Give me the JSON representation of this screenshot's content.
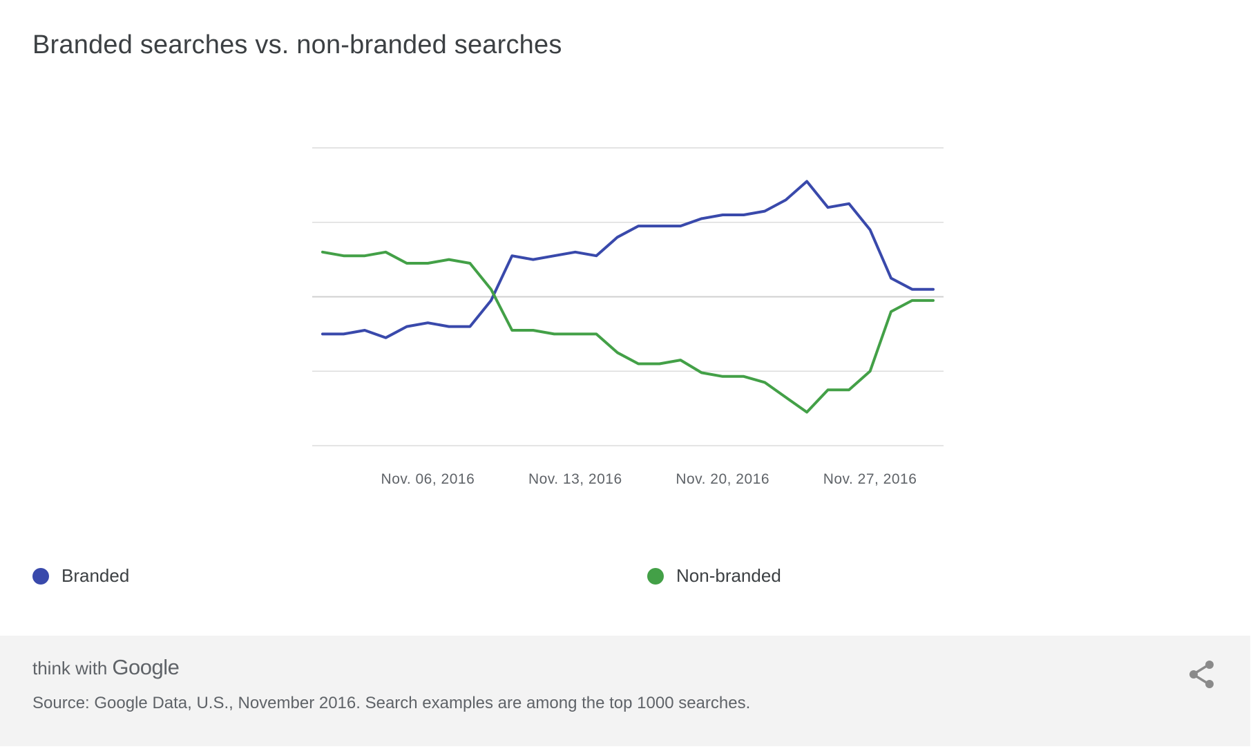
{
  "title": "Branded searches vs. non-branded searches",
  "chart_data": {
    "type": "line",
    "title": "Branded searches vs. non-branded searches",
    "x": [
      "2016-11-01",
      "2016-11-02",
      "2016-11-03",
      "2016-11-04",
      "2016-11-05",
      "2016-11-06",
      "2016-11-07",
      "2016-11-08",
      "2016-11-09",
      "2016-11-10",
      "2016-11-11",
      "2016-11-12",
      "2016-11-13",
      "2016-11-14",
      "2016-11-15",
      "2016-11-16",
      "2016-11-17",
      "2016-11-18",
      "2016-11-19",
      "2016-11-20",
      "2016-11-21",
      "2016-11-22",
      "2016-11-23",
      "2016-11-24",
      "2016-11-25",
      "2016-11-26",
      "2016-11-27",
      "2016-11-28",
      "2016-11-29",
      "2016-11-30"
    ],
    "x_tick_labels": [
      {
        "date": "2016-11-06",
        "label": "Nov. 06, 2016"
      },
      {
        "date": "2016-11-13",
        "label": "Nov. 13, 2016"
      },
      {
        "date": "2016-11-20",
        "label": "Nov. 20, 2016"
      },
      {
        "date": "2016-11-27",
        "label": "Nov. 27, 2016"
      }
    ],
    "ylim": [
      0,
      4
    ],
    "y_gridlines": [
      0,
      1,
      2,
      3,
      4
    ],
    "y_tick_labels_shown": false,
    "grid": true,
    "legend_position": "bottom",
    "series": [
      {
        "name": "Branded",
        "color": "#3949ab",
        "values": [
          1.5,
          1.5,
          1.55,
          1.45,
          1.6,
          1.65,
          1.6,
          1.6,
          1.95,
          2.55,
          2.5,
          2.55,
          2.6,
          2.55,
          2.8,
          2.95,
          2.95,
          2.95,
          3.05,
          3.1,
          3.1,
          3.15,
          3.3,
          3.55,
          3.2,
          3.25,
          2.9,
          2.25,
          2.1,
          2.1
        ]
      },
      {
        "name": "Non-branded",
        "color": "#43a047",
        "values": [
          2.6,
          2.55,
          2.55,
          2.6,
          2.45,
          2.45,
          2.5,
          2.45,
          2.1,
          1.55,
          1.55,
          1.5,
          1.5,
          1.5,
          1.25,
          1.1,
          1.1,
          1.15,
          0.98,
          0.93,
          0.93,
          0.85,
          0.65,
          0.45,
          0.75,
          0.75,
          1.0,
          1.8,
          1.95,
          1.95
        ]
      }
    ]
  },
  "footer": {
    "brand_think": "think with",
    "brand_google": "Google",
    "source": "Source: Google Data, U.S., November 2016. Search examples are among the top 1000 searches."
  },
  "icons": {
    "share": "share-icon"
  }
}
